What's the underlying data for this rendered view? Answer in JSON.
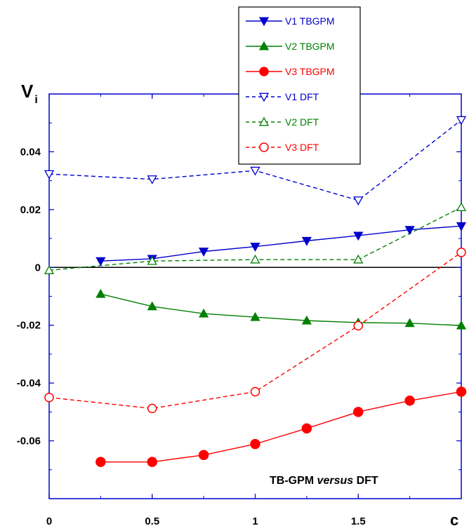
{
  "chart_data": {
    "type": "line",
    "title": "",
    "xlabel": "c",
    "ylabel": "V",
    "ylabel_sub": "i",
    "xlim": [
      0,
      2
    ],
    "ylim": [
      -0.08,
      0.06
    ],
    "x_ticks": [
      0,
      0.5,
      1,
      1.5
    ],
    "x_tick_labels": [
      "0",
      "0.5",
      "1",
      "1.5"
    ],
    "y_ticks": [
      -0.06,
      -0.04,
      -0.02,
      0,
      0.02,
      0.04
    ],
    "y_tick_labels": [
      "-0.06",
      "-0.04",
      "-0.02",
      "0",
      "0.02",
      "0.04"
    ],
    "grid": false,
    "legend_position": "top-right",
    "annotation": {
      "prefix": "TB-GPM ",
      "italic": "versus",
      "suffix": " DFT"
    },
    "series": [
      {
        "name": "V1 TBGPM",
        "color": "#0000cc",
        "marker": "triangle-down",
        "filled": true,
        "dashed": false,
        "x": [
          0.25,
          0.5,
          0.75,
          1.0,
          1.25,
          1.5,
          1.75,
          2.0
        ],
        "y": [
          0.0022,
          0.003,
          0.0055,
          0.0072,
          0.0092,
          0.011,
          0.013,
          0.0143
        ]
      },
      {
        "name": "V2 TBGPM",
        "color": "#008000",
        "marker": "triangle-up",
        "filled": true,
        "dashed": false,
        "x": [
          0.25,
          0.5,
          0.75,
          1.0,
          1.25,
          1.5,
          1.75,
          2.0
        ],
        "y": [
          -0.0092,
          -0.0135,
          -0.016,
          -0.0172,
          -0.0184,
          -0.0191,
          -0.0193,
          -0.0201
        ]
      },
      {
        "name": "V3 TBGPM",
        "color": "#ff0000",
        "marker": "circle",
        "filled": true,
        "dashed": false,
        "x": [
          0.25,
          0.5,
          0.75,
          1.0,
          1.25,
          1.5,
          1.75,
          2.0
        ],
        "y": [
          -0.0673,
          -0.0673,
          -0.0649,
          -0.0611,
          -0.0557,
          -0.05,
          -0.0461,
          -0.043
        ]
      },
      {
        "name": "V1 DFT",
        "color": "#0000cc",
        "marker": "triangle-down",
        "filled": false,
        "dashed": true,
        "x": [
          0,
          0.5,
          1.0,
          1.5,
          2.0
        ],
        "y": [
          0.0323,
          0.0305,
          0.0335,
          0.0232,
          0.051
        ]
      },
      {
        "name": "V2 DFT",
        "color": "#008000",
        "marker": "triangle-up",
        "filled": false,
        "dashed": true,
        "x": [
          0,
          0.5,
          1.0,
          1.5,
          2.0
        ],
        "y": [
          -0.001,
          0.0022,
          0.0027,
          0.0027,
          0.0208
        ]
      },
      {
        "name": "V3 DFT",
        "color": "#ff0000",
        "marker": "circle",
        "filled": false,
        "dashed": true,
        "x": [
          0,
          0.5,
          1.0,
          1.5,
          2.0
        ],
        "y": [
          -0.045,
          -0.0488,
          -0.043,
          -0.0202,
          0.0052
        ]
      }
    ]
  }
}
